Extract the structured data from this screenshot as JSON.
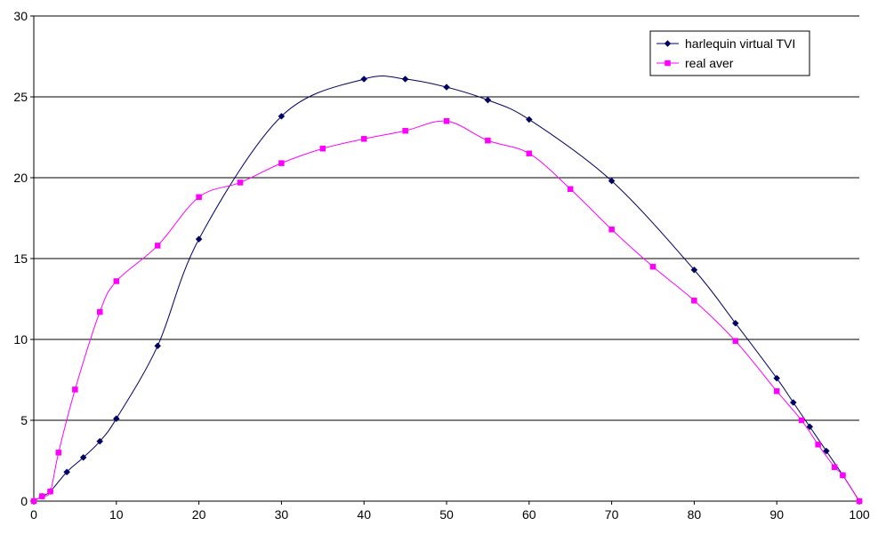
{
  "chart_data": {
    "type": "line",
    "title": "",
    "xlabel": "",
    "ylabel": "",
    "xlim": [
      0,
      100
    ],
    "ylim": [
      0,
      30
    ],
    "x_ticks": [
      "0",
      "10",
      "20",
      "30",
      "40",
      "50",
      "60",
      "70",
      "80",
      "90",
      "100"
    ],
    "y_ticks": [
      "0",
      "5",
      "10",
      "15",
      "20",
      "25",
      "30"
    ],
    "grid": "horizontal",
    "legend_position": "top-right",
    "series": [
      {
        "name": "harlequin virtual TVI",
        "color": "#000066",
        "marker": "diamond",
        "x": [
          0,
          1,
          2,
          4,
          6,
          8,
          10,
          15,
          20,
          30,
          40,
          45,
          50,
          55,
          60,
          70,
          80,
          85,
          90,
          92,
          94,
          96,
          98,
          100
        ],
        "y": [
          0,
          0.3,
          0.6,
          1.8,
          2.7,
          3.7,
          5.1,
          9.6,
          16.2,
          23.8,
          26.1,
          26.1,
          25.6,
          24.8,
          23.6,
          19.8,
          14.3,
          11.0,
          7.6,
          6.1,
          4.6,
          3.1,
          1.6,
          0
        ]
      },
      {
        "name": "real aver",
        "color": "#ff00ff",
        "marker": "square",
        "x": [
          0,
          1,
          2,
          3,
          5,
          8,
          10,
          15,
          20,
          25,
          30,
          35,
          40,
          45,
          50,
          55,
          60,
          65,
          70,
          75,
          80,
          85,
          90,
          93,
          95,
          97,
          98,
          100
        ],
        "y": [
          0,
          0.3,
          0.6,
          3.0,
          6.9,
          11.7,
          13.6,
          15.8,
          18.8,
          19.7,
          20.9,
          21.8,
          22.4,
          22.9,
          23.5,
          22.3,
          21.5,
          19.3,
          16.8,
          14.5,
          12.4,
          9.9,
          6.8,
          5.0,
          3.5,
          2.1,
          1.6,
          0
        ]
      }
    ]
  }
}
